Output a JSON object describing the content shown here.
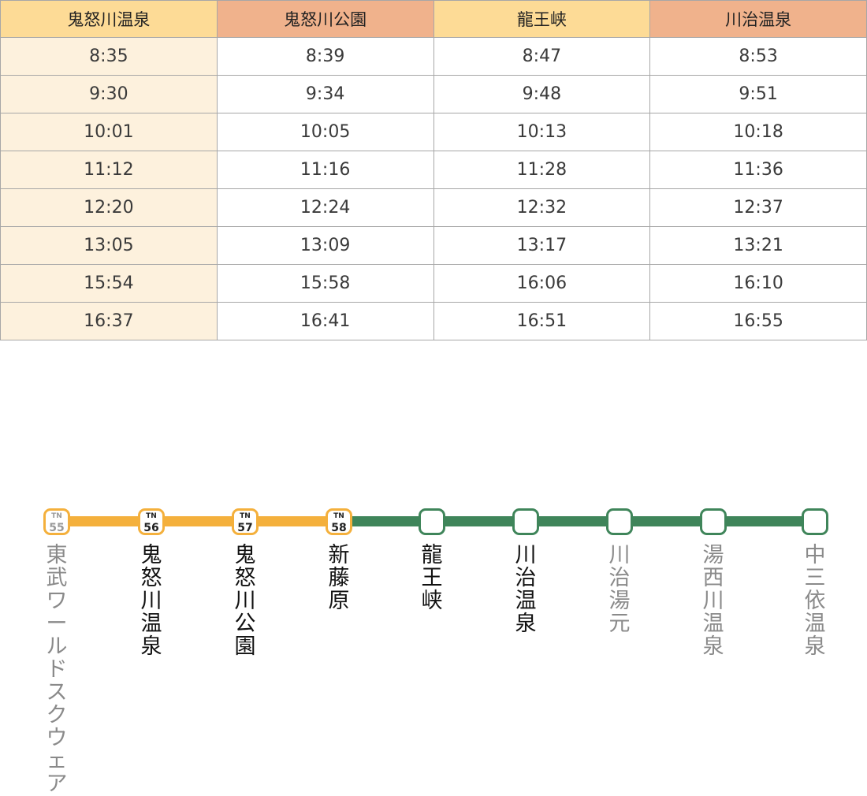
{
  "timetable": {
    "headers": [
      "鬼怒川温泉",
      "鬼怒川公園",
      "龍王峡",
      "川治温泉"
    ],
    "rows": [
      [
        "8:35",
        "8:39",
        "8:47",
        "8:53"
      ],
      [
        "9:30",
        "9:34",
        "9:48",
        "9:51"
      ],
      [
        "10:01",
        "10:05",
        "10:13",
        "10:18"
      ],
      [
        "11:12",
        "11:16",
        "11:28",
        "11:36"
      ],
      [
        "12:20",
        "12:24",
        "12:32",
        "12:37"
      ],
      [
        "13:05",
        "13:09",
        "13:17",
        "13:21"
      ],
      [
        "15:54",
        "15:58",
        "16:06",
        "16:10"
      ],
      [
        "16:37",
        "16:41",
        "16:51",
        "16:55"
      ]
    ]
  },
  "route": {
    "colors": {
      "orange_line": "#f4b03c",
      "green_line": "#3f855a"
    },
    "stations": [
      {
        "name": "東武ワールドスクウェア",
        "line": "TN",
        "number": "55",
        "emphasis": false
      },
      {
        "name": "鬼怒川温泉",
        "line": "TN",
        "number": "56",
        "emphasis": true
      },
      {
        "name": "鬼怒川公園",
        "line": "TN",
        "number": "57",
        "emphasis": true
      },
      {
        "name": "新藤原",
        "line": "TN",
        "number": "58",
        "emphasis": true
      },
      {
        "name": "龍王峡",
        "line": "",
        "number": "",
        "emphasis": true
      },
      {
        "name": "川治温泉",
        "line": "",
        "number": "",
        "emphasis": true
      },
      {
        "name": "川治湯元",
        "line": "",
        "number": "",
        "emphasis": false
      },
      {
        "name": "湯西川温泉",
        "line": "",
        "number": "",
        "emphasis": false
      },
      {
        "name": "中三依温泉",
        "line": "",
        "number": "",
        "emphasis": false
      }
    ]
  }
}
